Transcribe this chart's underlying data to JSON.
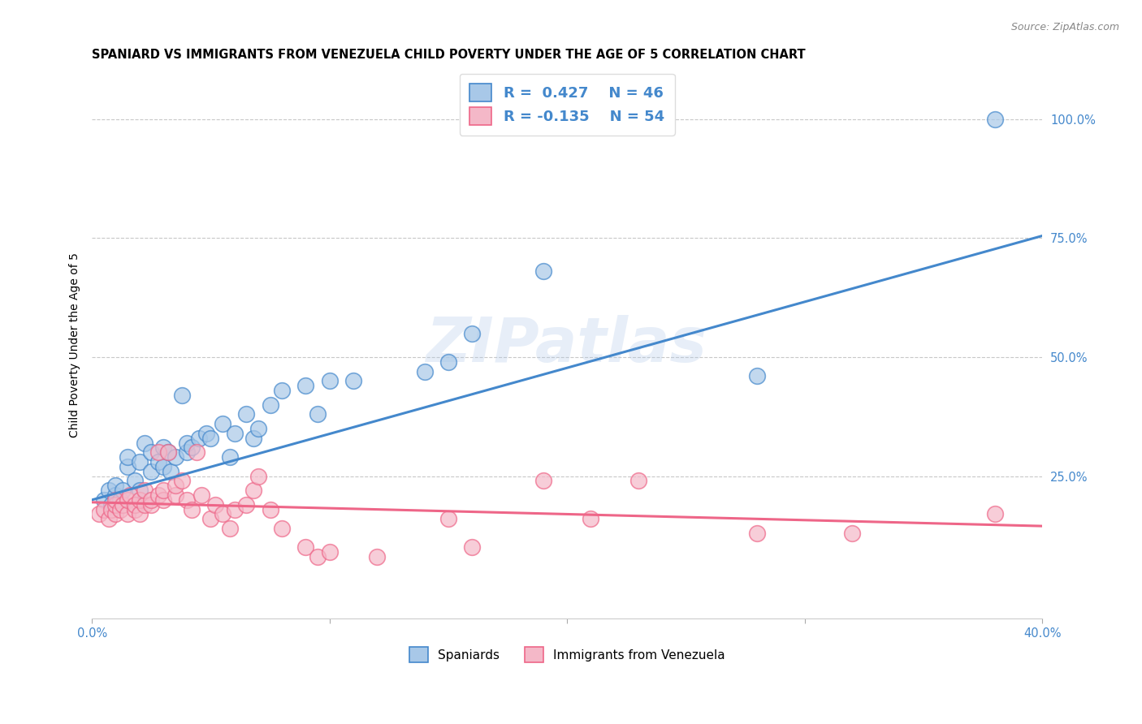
{
  "title": "SPANIARD VS IMMIGRANTS FROM VENEZUELA CHILD POVERTY UNDER THE AGE OF 5 CORRELATION CHART",
  "source": "Source: ZipAtlas.com",
  "ylabel": "Child Poverty Under the Age of 5",
  "legend_blue_label": "Spaniards",
  "legend_pink_label": "Immigrants from Venezuela",
  "R_blue": 0.427,
  "N_blue": 46,
  "R_pink": -0.135,
  "N_pink": 54,
  "blue_color": "#a8c8e8",
  "pink_color": "#f4b8c8",
  "blue_line_color": "#4488cc",
  "pink_line_color": "#ee6688",
  "watermark": "ZIPatlas",
  "blue_scatter_x": [
    0.005,
    0.007,
    0.008,
    0.01,
    0.01,
    0.012,
    0.013,
    0.015,
    0.015,
    0.018,
    0.02,
    0.02,
    0.022,
    0.025,
    0.025,
    0.028,
    0.03,
    0.03,
    0.032,
    0.033,
    0.035,
    0.038,
    0.04,
    0.04,
    0.042,
    0.045,
    0.048,
    0.05,
    0.055,
    0.058,
    0.06,
    0.065,
    0.068,
    0.07,
    0.075,
    0.08,
    0.09,
    0.095,
    0.1,
    0.11,
    0.14,
    0.15,
    0.16,
    0.19,
    0.28,
    0.38
  ],
  "blue_scatter_y": [
    0.2,
    0.22,
    0.19,
    0.21,
    0.23,
    0.2,
    0.22,
    0.27,
    0.29,
    0.24,
    0.22,
    0.28,
    0.32,
    0.26,
    0.3,
    0.28,
    0.27,
    0.31,
    0.3,
    0.26,
    0.29,
    0.42,
    0.3,
    0.32,
    0.31,
    0.33,
    0.34,
    0.33,
    0.36,
    0.29,
    0.34,
    0.38,
    0.33,
    0.35,
    0.4,
    0.43,
    0.44,
    0.38,
    0.45,
    0.45,
    0.47,
    0.49,
    0.55,
    0.68,
    0.46,
    1.0
  ],
  "pink_scatter_x": [
    0.003,
    0.005,
    0.007,
    0.008,
    0.01,
    0.01,
    0.01,
    0.012,
    0.013,
    0.015,
    0.015,
    0.016,
    0.018,
    0.018,
    0.02,
    0.02,
    0.022,
    0.022,
    0.025,
    0.025,
    0.028,
    0.028,
    0.03,
    0.03,
    0.032,
    0.035,
    0.035,
    0.038,
    0.04,
    0.042,
    0.044,
    0.046,
    0.05,
    0.052,
    0.055,
    0.058,
    0.06,
    0.065,
    0.068,
    0.07,
    0.075,
    0.08,
    0.09,
    0.095,
    0.1,
    0.12,
    0.15,
    0.16,
    0.19,
    0.21,
    0.23,
    0.28,
    0.32,
    0.38
  ],
  "pink_scatter_y": [
    0.17,
    0.18,
    0.16,
    0.18,
    0.17,
    0.19,
    0.2,
    0.18,
    0.19,
    0.17,
    0.2,
    0.21,
    0.18,
    0.19,
    0.17,
    0.2,
    0.19,
    0.22,
    0.19,
    0.2,
    0.21,
    0.3,
    0.2,
    0.22,
    0.3,
    0.21,
    0.23,
    0.24,
    0.2,
    0.18,
    0.3,
    0.21,
    0.16,
    0.19,
    0.17,
    0.14,
    0.18,
    0.19,
    0.22,
    0.25,
    0.18,
    0.14,
    0.1,
    0.08,
    0.09,
    0.08,
    0.16,
    0.1,
    0.24,
    0.16,
    0.24,
    0.13,
    0.13,
    0.17
  ],
  "xlim": [
    0.0,
    0.4
  ],
  "ylim": [
    -0.05,
    1.1
  ],
  "xticks": [
    0.0,
    0.1,
    0.2,
    0.3,
    0.4
  ],
  "yticks": [
    0.25,
    0.5,
    0.75,
    1.0
  ],
  "blue_line_x0": 0.0,
  "blue_line_y0": 0.2,
  "blue_line_x1": 0.4,
  "blue_line_y1": 0.755,
  "pink_line_x0": 0.0,
  "pink_line_y0": 0.195,
  "pink_line_x1": 0.4,
  "pink_line_y1": 0.145,
  "title_fontsize": 10.5,
  "axis_label_fontsize": 10,
  "tick_fontsize": 10.5
}
